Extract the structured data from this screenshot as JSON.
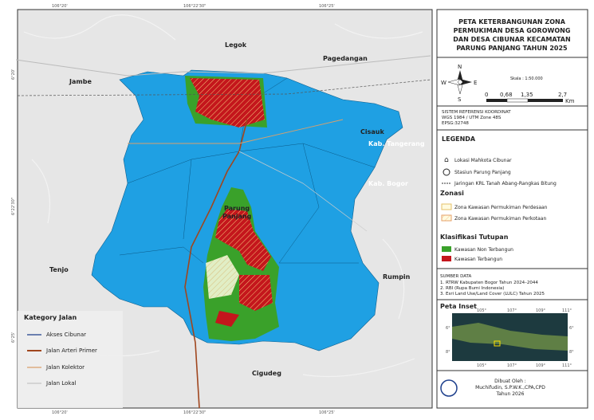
{
  "map": {
    "frame_labels": {
      "lon": [
        "106°20'",
        "106°22'30\"",
        "106°25'"
      ],
      "lat": [
        "6°20'",
        "6°22'30\"",
        "6°25'"
      ]
    },
    "places": {
      "legok": "Legok",
      "pagedangan": "Pagedangan",
      "jambe": "Jambe",
      "cisauk": "Cisauk",
      "kab_tangerang": "Kab. Tangerang",
      "kab_bogor": "Kab. Bogor",
      "parung": "Parung",
      "panjang": "Panjang",
      "tenjo": "Tenjo",
      "rumpin": "Rumpin",
      "cigudeg": "Cigudeg"
    }
  },
  "road_legend": {
    "title": "Kategory Jalan",
    "items": [
      "Akses Cibunar",
      "Jalan Arteri Primer",
      "Jalan Kolektor",
      "Jalan Lokal"
    ]
  },
  "panel": {
    "title": [
      "PETA KETERBANGUNAN ZONA",
      "PERMUKIMAN DESA GOROWONG",
      "DAN DESA CIBUNAR KECAMATAN",
      "PARUNG PANJANG TAHUN 2025"
    ],
    "compass": {
      "n": "N",
      "s": "S",
      "e": "E",
      "w": "W"
    },
    "scale": {
      "label": "Skala : 1:50.000",
      "ticks": [
        "0",
        "0,68",
        "1,35",
        "2,7"
      ],
      "unit": "Km"
    },
    "crs": [
      "SISTEM REFERENSI KOORDINAT",
      "WGS 1984 / UTM Zone 48S",
      "EPSG:32748"
    ],
    "legend": {
      "title": "LEGENDA",
      "items": [
        "Lokasi Mahkota Cibunar",
        "Stasiun Parung Panjang",
        "Jaringan KRL Tanah Abang-Rangkas Bitung"
      ],
      "zonasi": {
        "title": "Zonasi",
        "items": [
          "Zona Kawasan Permukiman Perdesaan",
          "Zona Kawasan Permukiman Perkotaan"
        ]
      },
      "tutupan": {
        "title": "Klasifikasi Tutupan",
        "items": [
          "Kawasan Non Terbangun",
          "Kawasan Terbangun"
        ]
      }
    },
    "sources": {
      "title": "SUMBER DATA",
      "items": [
        "1. RTRW Kabupaten Bogor Tahun 2024–2044",
        "2. RBI (Rupa Bumi Indonesia)",
        "3. Esri Land Use/Land Cover (LULC) Tahun 2025"
      ]
    },
    "inset": {
      "title": "Peta Inset",
      "xticks": [
        "105°",
        "107°",
        "109°",
        "111°"
      ],
      "yticks": [
        "6°",
        "8°"
      ]
    },
    "credit": [
      "Dibuat Oleh :",
      "Muchifudin, S.P.W.K.,CPA,CPD",
      "Tahun 2026"
    ]
  }
}
